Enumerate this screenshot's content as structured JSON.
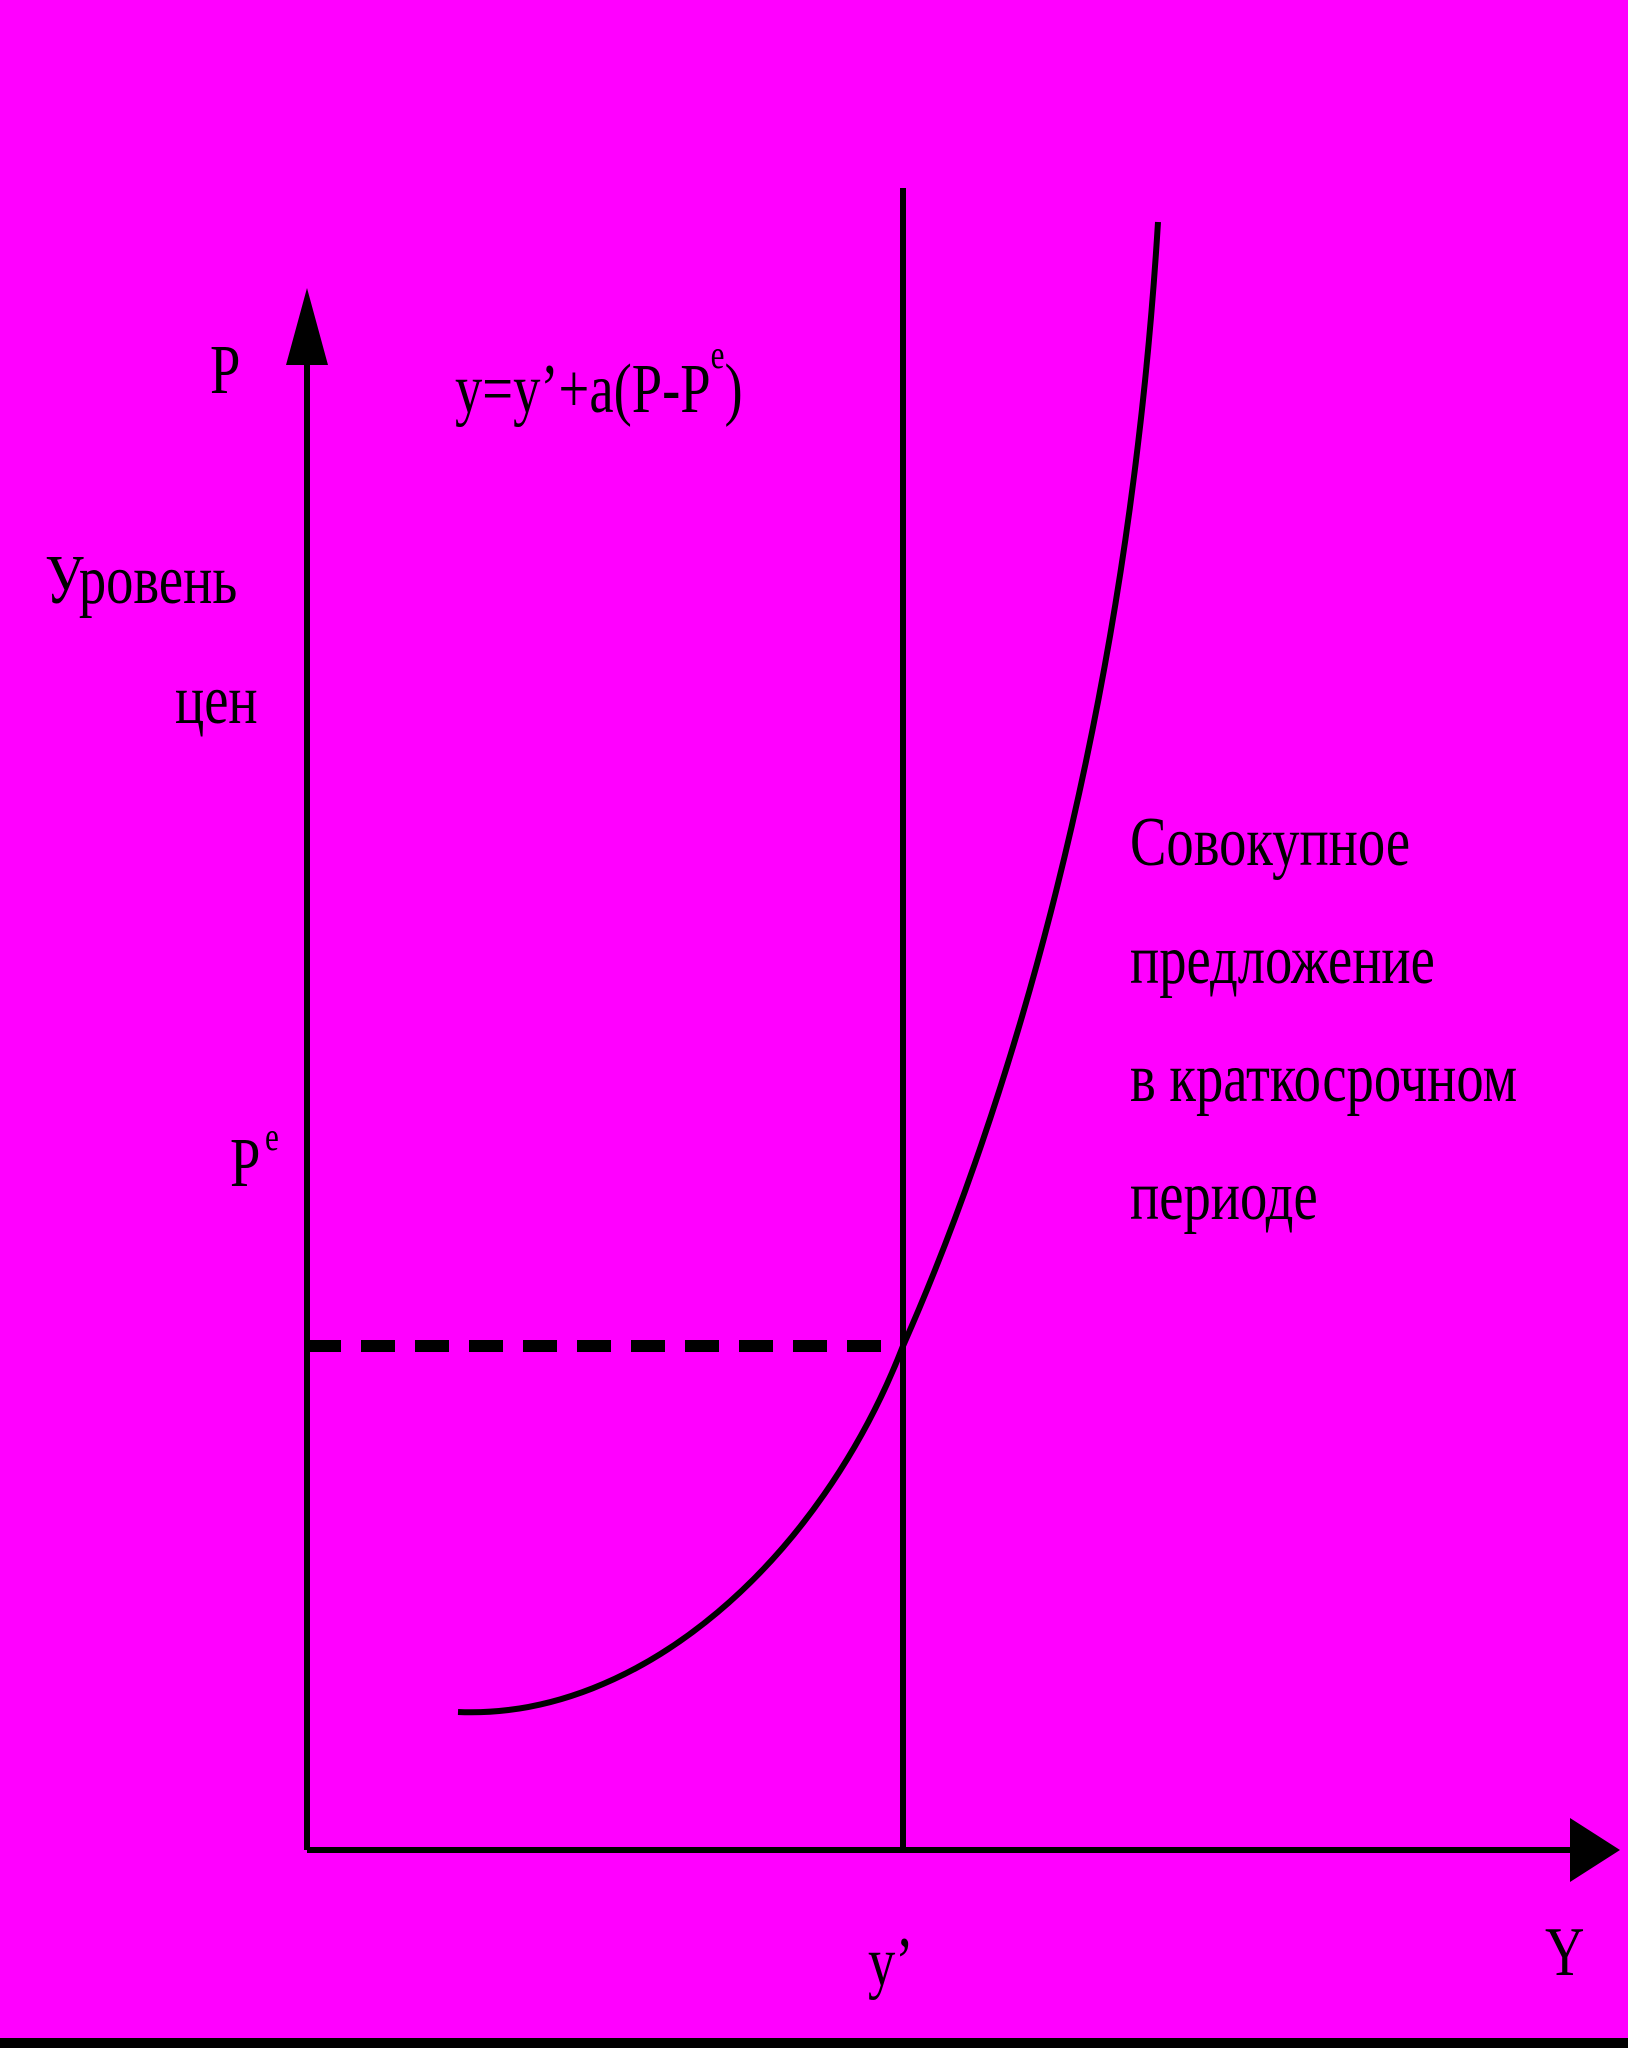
{
  "colors": {
    "background": "#FF00FF",
    "border": "#000000",
    "ink": "#000000"
  },
  "y_axis": {
    "symbol": "P",
    "label_line1": "Уровень",
    "label_line2": "цен"
  },
  "x_axis": {
    "symbol": "Y"
  },
  "equation": {
    "main": "y=y’+a(P-P",
    "superscript": "e",
    "close": ")"
  },
  "price_expected": {
    "base": "P",
    "superscript": "e"
  },
  "natural_output": {
    "label": "y’"
  },
  "curve_label": {
    "line1": "Совокупное",
    "line2": "предложение",
    "line3": "в краткосрочном",
    "line4": "периоде"
  }
}
